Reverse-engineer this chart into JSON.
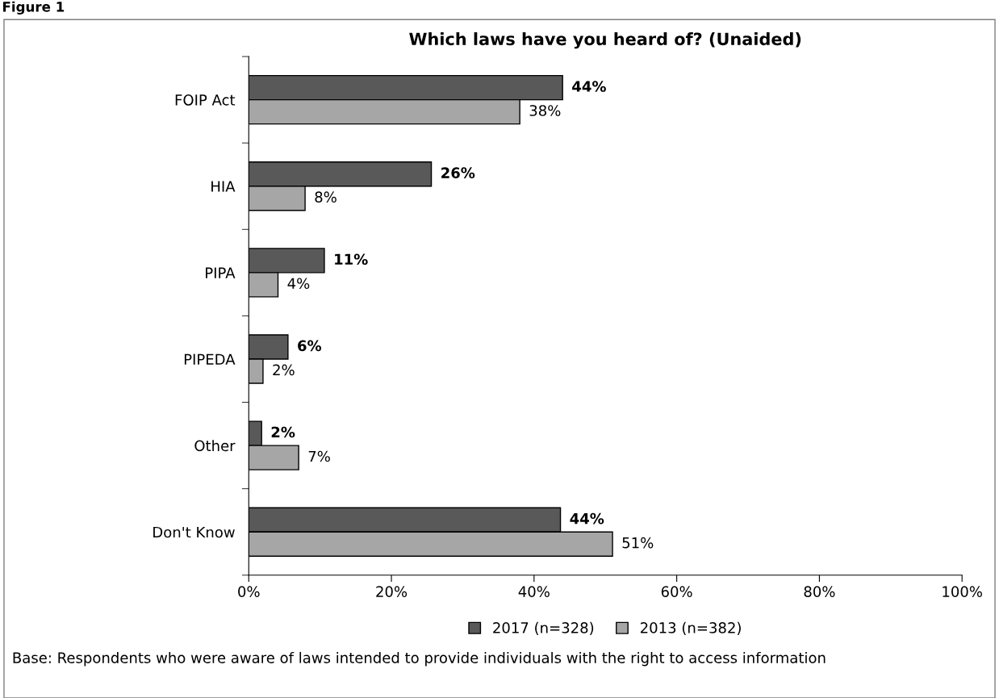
{
  "chart_data": {
    "type": "bar",
    "orientation": "horizontal",
    "title": "Which laws have you heard of? (Unaided)",
    "categories": [
      "FOIP Act",
      "HIA",
      "PIPA",
      "PIPEDA",
      "Other",
      "Don't Know"
    ],
    "series": [
      {
        "name": "2017 (n=328)",
        "color": "#595959",
        "values": [
          44.0,
          25.6,
          10.6,
          5.5,
          1.8,
          43.7
        ],
        "value_labels": [
          "44%",
          "26%",
          "11%",
          "6%",
          "2%",
          "44%"
        ]
      },
      {
        "name": "2013 (n=382)",
        "color": "#a6a6a6",
        "values": [
          38.0,
          7.9,
          4.1,
          2.0,
          7.0,
          51.0
        ],
        "value_labels": [
          "38%",
          "8%",
          "4%",
          "2%",
          "7%",
          "51%"
        ]
      }
    ],
    "xlim": [
      0,
      100
    ],
    "xticks": [
      {
        "value": 0,
        "label": "0%"
      },
      {
        "value": 20,
        "label": "20%"
      },
      {
        "value": 40,
        "label": "40%"
      },
      {
        "value": 60,
        "label": "60%"
      },
      {
        "value": 80,
        "label": "80%"
      },
      {
        "value": 100,
        "label": "100%"
      }
    ],
    "grid": false,
    "legend": "bottom",
    "annotations": [
      "Figure 1",
      "Base: Respondents who were aware of laws intended to provide individuals with the right to access information"
    ]
  }
}
